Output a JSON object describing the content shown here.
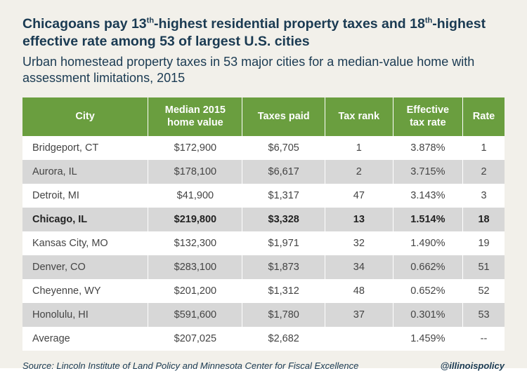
{
  "title_html": "Chicagoans pay 13<sup>th</sup>-highest residential property taxes and 18<sup>th</sup>-highest effective rate among 53 of largest U.S. cities",
  "subtitle": "Urban homestead property taxes in 53 major cities for a median-value home with assessment limitations, 2015",
  "table": {
    "type": "table",
    "header_bg": "#6a9e3f",
    "header_text_color": "#ffffff",
    "row_odd_bg": "#ffffff",
    "row_even_bg": "#d7d7d7",
    "highlight_row_index": 3,
    "columns": [
      {
        "label": "City",
        "align": "left"
      },
      {
        "label": "Median 2015 home value",
        "align": "center"
      },
      {
        "label": "Taxes paid",
        "align": "center"
      },
      {
        "label": "Tax rank",
        "align": "center"
      },
      {
        "label": "Effective tax rate",
        "align": "center"
      },
      {
        "label": "Rate",
        "align": "center"
      }
    ],
    "rows": [
      [
        "Bridgeport, CT",
        "$172,900",
        "$6,705",
        "1",
        "3.878%",
        "1"
      ],
      [
        "Aurora, IL",
        "$178,100",
        "$6,617",
        "2",
        "3.715%",
        "2"
      ],
      [
        "Detroit, MI",
        "$41,900",
        "$1,317",
        "47",
        "3.143%",
        "3"
      ],
      [
        "Chicago, IL",
        "$219,800",
        "$3,328",
        "13",
        "1.514%",
        "18"
      ],
      [
        "Kansas City, MO",
        "$132,300",
        "$1,971",
        "32",
        "1.490%",
        "19"
      ],
      [
        "Denver, CO",
        "$283,100",
        "$1,873",
        "34",
        "0.662%",
        "51"
      ],
      [
        "Cheyenne, WY",
        "$201,200",
        "$1,312",
        "48",
        "0.652%",
        "52"
      ],
      [
        "Honolulu, HI",
        "$591,600",
        "$1,780",
        "37",
        "0.301%",
        "53"
      ],
      [
        "Average",
        "$207,025",
        "$2,682",
        "",
        "1.459%",
        "--"
      ]
    ]
  },
  "source": "Source: Lincoln Institute of Land Policy and Minnesota Center for Fiscal Excellence",
  "handle": "@illinoispolicy",
  "colors": {
    "slide_bg": "#f2f0ea",
    "title_color": "#1a3a52",
    "body_text": "#444444"
  },
  "fontsize": {
    "title": 19.5,
    "subtitle": 18,
    "table": 14.5,
    "footer": 13
  }
}
